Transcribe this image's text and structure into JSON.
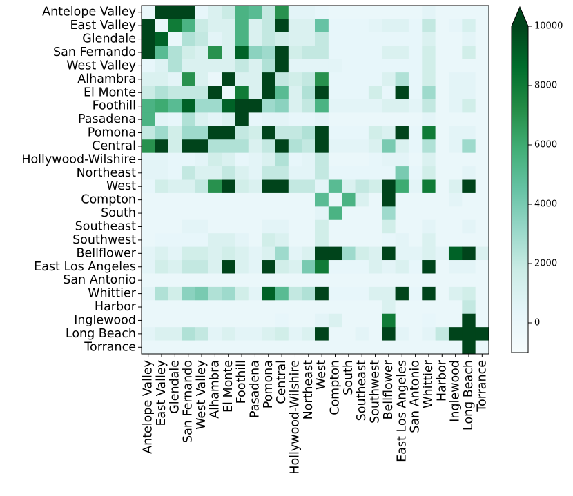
{
  "chart_data": {
    "type": "heatmap",
    "title": "",
    "xlabel": "",
    "ylabel": "",
    "labels": [
      "Antelope Valley",
      "East Valley",
      "Glendale",
      "San Fernando",
      "West Valley",
      "Alhambra",
      "El Monte",
      "Foothill",
      "Pasadena",
      "Pomona",
      "Central",
      "Hollywood-Wilshire",
      "Northeast",
      "West",
      "Compton",
      "South",
      "Southeast",
      "Southwest",
      "Bellflower",
      "East Los Angeles",
      "San Antonio",
      "Whittier",
      "Harbor",
      "Inglewood",
      "Long Beach",
      "Torrance"
    ],
    "values": [
      [
        0,
        10000,
        10000,
        10000,
        200,
        1000,
        1800,
        5500,
        5000,
        2000,
        7000,
        500,
        500,
        200,
        0,
        0,
        0,
        0,
        0,
        0,
        0,
        500,
        0,
        0,
        0,
        0
      ],
      [
        10000,
        0,
        8000,
        5500,
        1800,
        1000,
        1000,
        5500,
        1000,
        2000,
        10000,
        1000,
        1000,
        4500,
        200,
        200,
        200,
        500,
        800,
        800,
        200,
        2000,
        0,
        300,
        1200,
        0
      ],
      [
        10000,
        9000,
        0,
        2500,
        2000,
        500,
        1000,
        5500,
        1000,
        2000,
        1500,
        1000,
        1000,
        2000,
        200,
        200,
        200,
        200,
        200,
        200,
        200,
        1000,
        0,
        0,
        500,
        0
      ],
      [
        10000,
        5000,
        2500,
        1500,
        1000,
        7000,
        1000,
        9000,
        3500,
        3000,
        10000,
        1500,
        2000,
        2000,
        200,
        200,
        200,
        200,
        1000,
        1000,
        200,
        1500,
        0,
        0,
        1500,
        0
      ],
      [
        200,
        800,
        2500,
        1000,
        1000,
        1000,
        1000,
        2000,
        1000,
        2500,
        10000,
        500,
        500,
        500,
        500,
        200,
        200,
        200,
        200,
        200,
        200,
        1500,
        0,
        0,
        0,
        0
      ],
      [
        1000,
        1000,
        500,
        7000,
        1000,
        0,
        10000,
        1000,
        1000,
        10000,
        2000,
        1500,
        2000,
        7000,
        200,
        200,
        200,
        200,
        1000,
        2500,
        200,
        1500,
        0,
        500,
        500,
        0
      ],
      [
        1800,
        2500,
        2000,
        2000,
        2000,
        10000,
        0,
        8000,
        1000,
        10000,
        5000,
        1000,
        2500,
        10000,
        200,
        200,
        200,
        1500,
        200,
        10000,
        200,
        3000,
        0,
        500,
        500,
        0
      ],
      [
        5500,
        6000,
        5000,
        9000,
        3000,
        3000,
        9000,
        10000,
        10000,
        3000,
        3500,
        1000,
        2000,
        5500,
        500,
        500,
        500,
        500,
        1000,
        1000,
        500,
        2000,
        0,
        500,
        1500,
        0
      ],
      [
        5500,
        500,
        200,
        2500,
        1000,
        500,
        1000,
        10000,
        200,
        500,
        500,
        200,
        200,
        500,
        0,
        0,
        0,
        0,
        0,
        0,
        0,
        500,
        0,
        0,
        0,
        0
      ],
      [
        2000,
        3000,
        1500,
        3000,
        3000,
        10000,
        10000,
        2000,
        1500,
        10000,
        2000,
        2000,
        2500,
        10000,
        200,
        200,
        200,
        1500,
        1000,
        10000,
        200,
        8000,
        0,
        500,
        500,
        0
      ],
      [
        7000,
        10000,
        1500,
        10000,
        10000,
        2500,
        2500,
        2500,
        1000,
        2000,
        10000,
        2500,
        2000,
        10000,
        500,
        500,
        500,
        1000,
        4000,
        1000,
        200,
        2500,
        0,
        500,
        3000,
        0
      ],
      [
        500,
        500,
        200,
        200,
        500,
        1500,
        1000,
        200,
        500,
        1000,
        2500,
        200,
        500,
        2000,
        0,
        0,
        0,
        200,
        500,
        500,
        0,
        1000,
        0,
        0,
        0,
        0
      ],
      [
        500,
        500,
        200,
        2000,
        1000,
        1000,
        2000,
        1000,
        500,
        2000,
        2000,
        500,
        500,
        2000,
        200,
        200,
        200,
        200,
        200,
        4000,
        200,
        1500,
        0,
        0,
        500,
        0
      ],
      [
        200,
        1500,
        1000,
        1000,
        2000,
        7000,
        10000,
        1500,
        1000,
        10000,
        10000,
        2000,
        2000,
        500,
        5000,
        1000,
        2000,
        1500,
        10000,
        6000,
        500,
        8000,
        0,
        1000,
        10000,
        0
      ],
      [
        0,
        0,
        0,
        0,
        0,
        0,
        0,
        0,
        0,
        0,
        0,
        0,
        0,
        5000,
        0,
        5500,
        1000,
        0,
        10000,
        0,
        0,
        0,
        0,
        500,
        0,
        0
      ],
      [
        0,
        0,
        0,
        0,
        0,
        0,
        0,
        0,
        0,
        0,
        0,
        0,
        0,
        500,
        5500,
        0,
        0,
        0,
        3000,
        0,
        0,
        0,
        0,
        0,
        0,
        0
      ],
      [
        0,
        0,
        0,
        500,
        500,
        0,
        0,
        0,
        0,
        500,
        500,
        0,
        0,
        1500,
        0,
        0,
        0,
        0,
        1500,
        0,
        0,
        500,
        0,
        0,
        500,
        0
      ],
      [
        0,
        200,
        200,
        200,
        200,
        1000,
        1000,
        500,
        0,
        1500,
        1000,
        0,
        0,
        1500,
        0,
        0,
        0,
        0,
        200,
        500,
        0,
        1000,
        0,
        0,
        0,
        0
      ],
      [
        500,
        1000,
        500,
        1500,
        1500,
        1000,
        1500,
        1000,
        500,
        1000,
        3000,
        500,
        1000,
        10000,
        10000,
        3000,
        1500,
        1000,
        10000,
        500,
        500,
        1000,
        500,
        9000,
        10000,
        1000
      ],
      [
        500,
        1500,
        1000,
        2000,
        2000,
        1000,
        10000,
        1000,
        500,
        10000,
        1500,
        1000,
        4000,
        8000,
        200,
        200,
        200,
        1000,
        500,
        1000,
        200,
        10000,
        0,
        500,
        500,
        0
      ],
      [
        0,
        0,
        0,
        0,
        0,
        0,
        0,
        0,
        0,
        0,
        0,
        0,
        0,
        0,
        0,
        0,
        0,
        0,
        0,
        0,
        0,
        0,
        0,
        0,
        0,
        0
      ],
      [
        500,
        2500,
        1500,
        3500,
        4000,
        2500,
        3000,
        1500,
        500,
        9000,
        5000,
        2000,
        2500,
        10000,
        200,
        200,
        200,
        1000,
        1000,
        10000,
        200,
        10000,
        0,
        1000,
        1500,
        0
      ],
      [
        0,
        0,
        0,
        0,
        0,
        0,
        0,
        0,
        0,
        0,
        0,
        0,
        0,
        0,
        0,
        0,
        0,
        0,
        1000,
        0,
        0,
        0,
        0,
        0,
        2000,
        0
      ],
      [
        0,
        0,
        0,
        0,
        0,
        0,
        0,
        0,
        0,
        0,
        200,
        0,
        0,
        500,
        1000,
        0,
        0,
        0,
        8000,
        0,
        0,
        200,
        0,
        0,
        10000,
        0
      ],
      [
        500,
        1000,
        1000,
        2500,
        2000,
        500,
        1000,
        500,
        500,
        1000,
        1500,
        500,
        1000,
        10000,
        0,
        0,
        500,
        0,
        10000,
        500,
        0,
        500,
        2000,
        10000,
        10000,
        10000
      ],
      [
        0,
        0,
        0,
        0,
        0,
        0,
        0,
        0,
        0,
        0,
        0,
        0,
        0,
        0,
        0,
        0,
        0,
        0,
        0,
        0,
        0,
        0,
        0,
        0,
        10000,
        0
      ]
    ],
    "colorbar": {
      "ticks": [
        0,
        2000,
        4000,
        6000,
        8000,
        10000
      ],
      "range": [
        -1000,
        10000
      ],
      "colormap": "BuGn",
      "extend": "max"
    }
  }
}
